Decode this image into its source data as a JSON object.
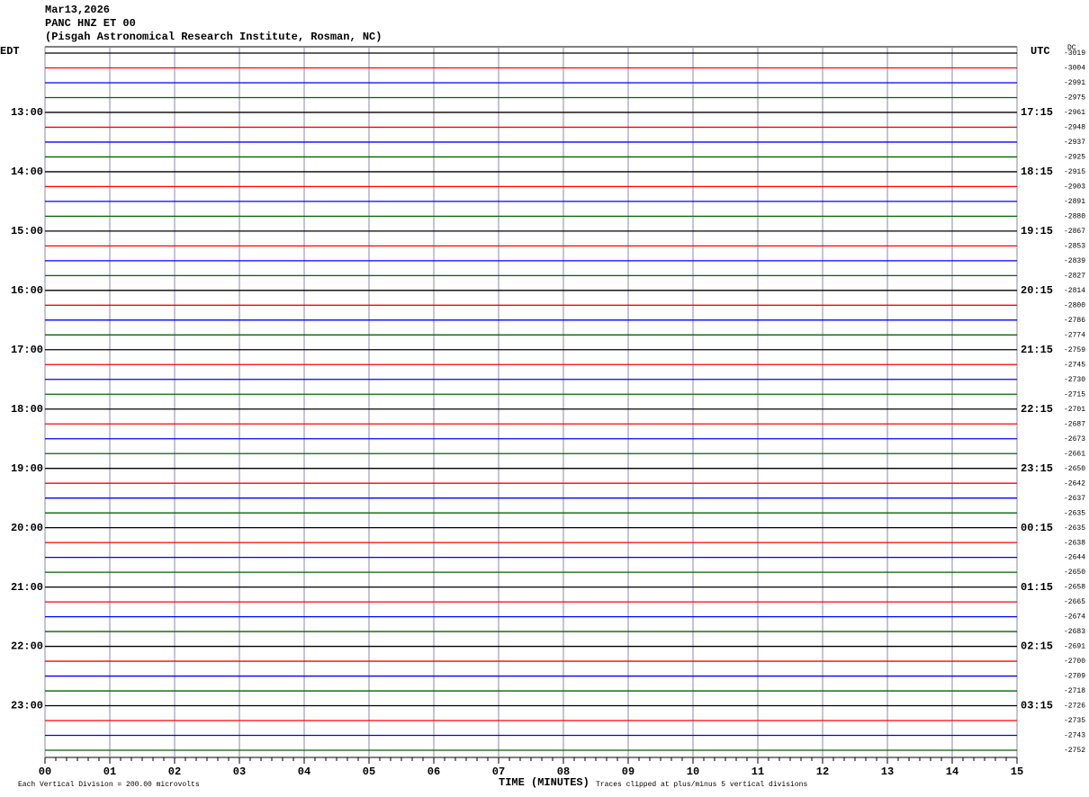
{
  "chart_data": {
    "type": "helicorder",
    "title": "Mar13,2026",
    "subtitle": "PANC HNZ ET 00",
    "station": "(Pisgah Astronomical Research Institute, Rosman, NC)",
    "left_axis_label": "EDT",
    "right_axis_label": "UTC",
    "dc_label": "DC",
    "x_label": "TIME (MINUTES)",
    "scale_note": "Each Vertical Division =  200.00 microvolts",
    "clip_note": "Traces clipped at plus/minus 5 vertical divisions",
    "colors": [
      "#000000",
      "#ff0000",
      "#0000ff",
      "#006400"
    ],
    "grid": true,
    "xlim": [
      0,
      15
    ],
    "xticks": [
      {
        "value": 0,
        "label": "00"
      },
      {
        "value": 1,
        "label": "01"
      },
      {
        "value": 2,
        "label": "02"
      },
      {
        "value": 3,
        "label": "03"
      },
      {
        "value": 4,
        "label": "04"
      },
      {
        "value": 5,
        "label": "05"
      },
      {
        "value": 6,
        "label": "06"
      },
      {
        "value": 7,
        "label": "07"
      },
      {
        "value": 8,
        "label": "08"
      },
      {
        "value": 9,
        "label": "09"
      },
      {
        "value": 10,
        "label": "10"
      },
      {
        "value": 11,
        "label": "11"
      },
      {
        "value": 12,
        "label": "12"
      },
      {
        "value": 13,
        "label": "13"
      },
      {
        "value": 14,
        "label": "14"
      },
      {
        "value": 15,
        "label": "15"
      }
    ],
    "edt_labels": [
      null,
      null,
      null,
      null,
      "13:00",
      null,
      null,
      null,
      "14:00",
      null,
      null,
      null,
      "15:00",
      null,
      null,
      null,
      "16:00",
      null,
      null,
      null,
      "17:00",
      null,
      null,
      null,
      "18:00",
      null,
      null,
      null,
      "19:00",
      null,
      null,
      null,
      "20:00",
      null,
      null,
      null,
      "21:00",
      null,
      null,
      null,
      "22:00",
      null,
      null,
      null,
      "23:00",
      null,
      null,
      null
    ],
    "utc_labels": [
      null,
      null,
      null,
      null,
      "17:15",
      null,
      null,
      null,
      "18:15",
      null,
      null,
      null,
      "19:15",
      null,
      null,
      null,
      "20:15",
      null,
      null,
      null,
      "21:15",
      null,
      null,
      null,
      "22:15",
      null,
      null,
      null,
      "23:15",
      null,
      null,
      null,
      "00:15",
      null,
      null,
      null,
      "01:15",
      null,
      null,
      null,
      "02:15",
      null,
      null,
      null,
      "03:15",
      null,
      null,
      null
    ],
    "dc_values": [
      -3019,
      -3004,
      -2991,
      -2975,
      -2961,
      -2948,
      -2937,
      -2925,
      -2915,
      -2903,
      -2891,
      -2880,
      -2867,
      -2853,
      -2839,
      -2827,
      -2814,
      -2800,
      -2786,
      -2774,
      -2759,
      -2745,
      -2730,
      -2715,
      -2701,
      -2687,
      -2673,
      -2661,
      -2650,
      -2642,
      -2637,
      -2635,
      -2635,
      -2638,
      -2644,
      -2650,
      -2658,
      -2665,
      -2674,
      -2683,
      -2691,
      -2700,
      -2709,
      -2718,
      -2726,
      -2735,
      -2743,
      -2752
    ]
  }
}
